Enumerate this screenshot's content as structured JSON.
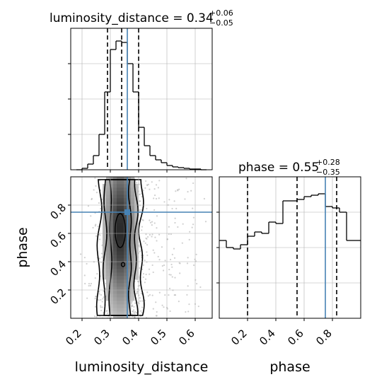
{
  "chart_data": {
    "type": "corner",
    "parameters": [
      "luminosity_distance",
      "phase"
    ],
    "panels": {
      "luminosity_distance_hist": {
        "type": "step-histogram",
        "title": {
          "main": "luminosity_distance = 0.34",
          "sup": "+0.06",
          "sub": "−0.05"
        },
        "xlim": [
          0.16,
          0.66
        ],
        "ylim": [
          0,
          1
        ],
        "y_ticks_unlabeled": true,
        "bin_edges": [
          0.18,
          0.2,
          0.22,
          0.24,
          0.26,
          0.28,
          0.3,
          0.32,
          0.34,
          0.36,
          0.38,
          0.4,
          0.42,
          0.44,
          0.46,
          0.48,
          0.5,
          0.52,
          0.54,
          0.56,
          0.58,
          0.6,
          0.62,
          0.64
        ],
        "counts": [
          0.0,
          0.01,
          0.04,
          0.1,
          0.25,
          0.55,
          0.85,
          0.91,
          0.9,
          0.75,
          0.55,
          0.3,
          0.17,
          0.1,
          0.07,
          0.05,
          0.03,
          0.02,
          0.015,
          0.01,
          0.005,
          0.005,
          0.0
        ],
        "quantiles": [
          0.29,
          0.34,
          0.4
        ],
        "truth": 0.36
      },
      "phase_hist": {
        "type": "step-histogram",
        "title": {
          "main": "phase = 0.55",
          "sup": "+0.28",
          "sub": "−0.35"
        },
        "xlim": [
          0.0,
          1.0
        ],
        "x_ticks": [
          0.2,
          0.4,
          0.6,
          0.8
        ],
        "xlabel": "phase",
        "ylim": [
          0,
          1
        ],
        "y_ticks_unlabeled": true,
        "bin_edges": [
          0.0,
          0.05,
          0.1,
          0.15,
          0.2,
          0.25,
          0.3,
          0.35,
          0.4,
          0.45,
          0.5,
          0.55,
          0.6,
          0.65,
          0.7,
          0.75,
          0.8,
          0.85,
          0.9,
          0.95,
          1.0
        ],
        "counts": [
          0.55,
          0.5,
          0.49,
          0.52,
          0.58,
          0.61,
          0.6,
          0.68,
          0.67,
          0.83,
          0.83,
          0.84,
          0.86,
          0.87,
          0.88,
          0.79,
          0.78,
          0.75,
          0.55,
          0.55
        ],
        "quantiles": [
          0.2,
          0.55,
          0.83
        ],
        "truth": 0.75
      },
      "joint": {
        "type": "2d-density",
        "xlim": [
          0.16,
          0.66
        ],
        "ylim": [
          0.0,
          1.0
        ],
        "x_ticks": [
          0.2,
          0.3,
          0.4,
          0.5,
          0.6
        ],
        "y_ticks": [
          0.2,
          0.4,
          0.6,
          0.8
        ],
        "xlabel": "luminosity_distance",
        "ylabel": "phase",
        "truth": [
          0.36,
          0.75
        ],
        "density_center_x": 0.335,
        "density_center_y": 0.62
      }
    }
  },
  "colors": {
    "truth": "#4682b4",
    "hist_line": "#000000",
    "grid": "#b0b0b0",
    "points": "#a9a9a9"
  }
}
